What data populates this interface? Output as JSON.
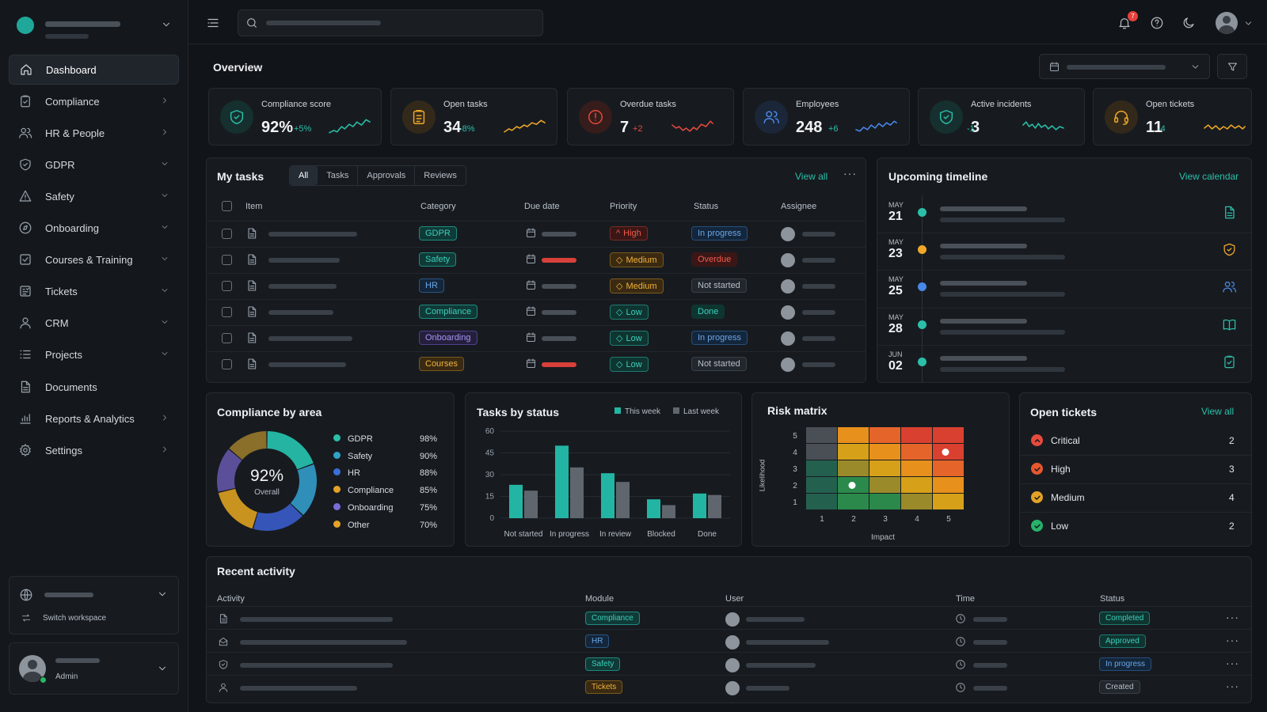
{
  "sidebar": {
    "items": [
      {
        "label": "Dashboard",
        "icon": "home-icon"
      },
      {
        "label": "Compliance",
        "icon": "clipboard-check-icon"
      },
      {
        "label": "HR & People",
        "icon": "people-icon"
      },
      {
        "label": "GDPR",
        "icon": "shield-icon"
      },
      {
        "label": "Safety",
        "icon": "warning-icon"
      },
      {
        "label": "Onboarding",
        "icon": "rocket-icon"
      },
      {
        "label": "Courses & Training",
        "icon": "course-icon"
      },
      {
        "label": "Tickets",
        "icon": "ticket-icon"
      },
      {
        "label": "CRM",
        "icon": "user-icon"
      },
      {
        "label": "Projects",
        "icon": "list-icon"
      },
      {
        "label": "Documents",
        "icon": "document-icon"
      },
      {
        "label": "Reports & Analytics",
        "icon": "bar-chart-icon"
      },
      {
        "label": "Settings",
        "icon": "gear-icon"
      }
    ],
    "switch_workspace": "Switch workspace",
    "user_role": "Admin"
  },
  "topbar": {
    "notifications_count": "7"
  },
  "overview": {
    "title": "Overview"
  },
  "kpis": [
    {
      "label": "Compliance score",
      "value": "92%",
      "delta": "+5%",
      "color": "#2bbfa8"
    },
    {
      "label": "Open tasks",
      "value": "34",
      "delta": "-8%",
      "color": "#f0a728"
    },
    {
      "label": "Overdue tasks",
      "value": "7",
      "delta": "+2",
      "color": "#e54b3c"
    },
    {
      "label": "Employees",
      "value": "248",
      "delta": "+6",
      "color": "#4a88e8"
    },
    {
      "label": "Active incidents",
      "value": "3",
      "delta": "-1",
      "color": "#2bbfa8"
    },
    {
      "label": "Open tickets",
      "value": "11",
      "delta": "-4",
      "color": "#f0a728"
    }
  ],
  "tasks": {
    "title": "My tasks",
    "tabs": [
      "All",
      "Tasks",
      "Approvals",
      "Reviews"
    ],
    "view_all": "View all",
    "columns": [
      "Item",
      "Category",
      "Due date",
      "Priority",
      "Status",
      "Assignee"
    ],
    "rows": [
      {
        "category": "GDPR",
        "priority": "High",
        "status": "In progress"
      },
      {
        "category": "Safety",
        "priority": "Medium",
        "status": "Overdue"
      },
      {
        "category": "HR",
        "priority": "Medium",
        "status": "Not started"
      },
      {
        "category": "Compliance",
        "priority": "Low",
        "status": "Done"
      },
      {
        "category": "Onboarding",
        "priority": "Low",
        "status": "In progress"
      },
      {
        "category": "Courses",
        "priority": "Low",
        "status": "Not started"
      }
    ]
  },
  "timeline": {
    "title": "Upcoming timeline",
    "view_calendar": "View calendar",
    "items": [
      {
        "month": "MAY",
        "day": "21",
        "color": "#2bbfa8",
        "icon": "document-icon"
      },
      {
        "month": "MAY",
        "day": "23",
        "color": "#f0a728",
        "icon": "shield-icon"
      },
      {
        "month": "MAY",
        "day": "25",
        "color": "#4a88e8",
        "icon": "people-icon"
      },
      {
        "month": "MAY",
        "day": "28",
        "color": "#2bbfa8",
        "icon": "book-icon"
      },
      {
        "month": "JUN",
        "day": "02",
        "color": "#2bbfa8",
        "icon": "clipboard-check-icon"
      }
    ]
  },
  "compliance_area": {
    "title": "Compliance by area",
    "center_value": "92%",
    "center_label": "Overall",
    "items": [
      {
        "label": "GDPR",
        "value": "98%",
        "color": "#2bbfa8"
      },
      {
        "label": "Safety",
        "value": "90%",
        "color": "#2fa3c8"
      },
      {
        "label": "HR",
        "value": "88%",
        "color": "#3b6fd8"
      },
      {
        "label": "Compliance",
        "value": "85%",
        "color": "#e3a227"
      },
      {
        "label": "Onboarding",
        "value": "75%",
        "color": "#7b6bd8"
      },
      {
        "label": "Other",
        "value": "70%",
        "color": "#e3a227"
      }
    ]
  },
  "tasks_status": {
    "title": "Tasks by status",
    "legend": [
      "This week",
      "Last week"
    ]
  },
  "risk_matrix": {
    "title": "Risk matrix",
    "ylabel": "Likelihood",
    "xlabel": "Impact",
    "ticks": [
      "1",
      "2",
      "3",
      "4",
      "5"
    ]
  },
  "open_tickets": {
    "title": "Open tickets",
    "view_all": "View all",
    "items": [
      {
        "label": "Critical",
        "count": "2",
        "color": "#e54b3c"
      },
      {
        "label": "High",
        "count": "3",
        "color": "#e8572e"
      },
      {
        "label": "Medium",
        "count": "4",
        "color": "#e3a227"
      },
      {
        "label": "Low",
        "count": "2",
        "color": "#27b36a"
      }
    ]
  },
  "recent_activity": {
    "title": "Recent activity",
    "columns": [
      "Activity",
      "Module",
      "User",
      "Time",
      "Status"
    ],
    "rows": [
      {
        "module": "Compliance",
        "status": "Completed"
      },
      {
        "module": "HR",
        "status": "Approved"
      },
      {
        "module": "Safety",
        "status": "In progress"
      },
      {
        "module": "Tickets",
        "status": "Created"
      }
    ]
  },
  "chart_data": [
    {
      "type": "bar",
      "title": "Tasks by status",
      "categories": [
        "Not started",
        "In progress",
        "In review",
        "Blocked",
        "Done"
      ],
      "series": [
        {
          "name": "This week",
          "values": [
            23,
            50,
            31,
            13,
            17
          ]
        },
        {
          "name": "Last week",
          "values": [
            19,
            35,
            25,
            9,
            16
          ]
        }
      ],
      "ylim": [
        0,
        60
      ],
      "yticks": [
        0,
        15,
        30,
        45,
        60
      ],
      "legend_position": "top-right"
    },
    {
      "type": "pie",
      "title": "Compliance by area",
      "categories": [
        "GDPR",
        "Safety",
        "HR",
        "Compliance",
        "Onboarding",
        "Other"
      ],
      "values": [
        98,
        90,
        88,
        85,
        75,
        70
      ]
    },
    {
      "type": "heatmap",
      "title": "Risk matrix",
      "xlabel": "Impact",
      "ylabel": "Likelihood",
      "x": [
        1,
        2,
        3,
        4,
        5
      ],
      "y": [
        1,
        2,
        3,
        4,
        5
      ],
      "points": [
        [
          5,
          4
        ],
        [
          2,
          2
        ]
      ]
    }
  ]
}
